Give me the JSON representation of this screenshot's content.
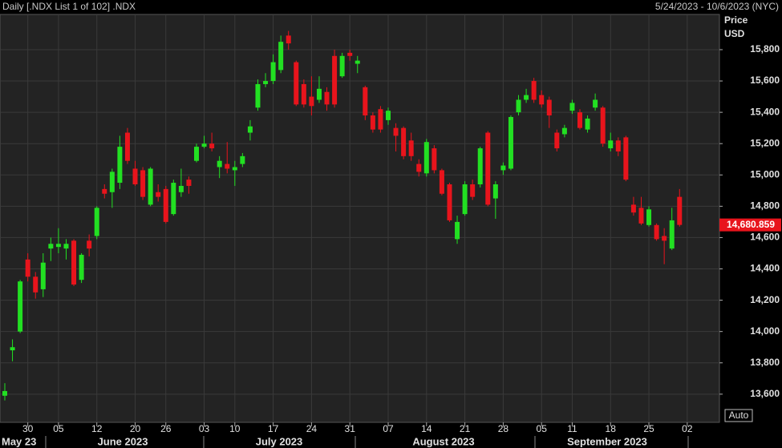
{
  "chart_data": {
    "type": "candlestick",
    "title": "Daily [.NDX List 1 of 102] .NDX",
    "date_range": "5/24/2023 - 10/6/2023 (NYC)",
    "y_label": "Price",
    "y_unit": "USD",
    "auto_button": "Auto",
    "up_color": "#22e022",
    "down_color": "#e8141c",
    "grid": true,
    "ylim": [
      13420,
      16025
    ],
    "yticks": [
      {
        "value": 13600,
        "label": "13,600"
      },
      {
        "value": 13800,
        "label": "13,800"
      },
      {
        "value": 14000,
        "label": "14,000"
      },
      {
        "value": 14200,
        "label": "14,200"
      },
      {
        "value": 14400,
        "label": "14,400"
      },
      {
        "value": 14600,
        "label": "14,600"
      },
      {
        "value": 14800,
        "label": "14,800"
      },
      {
        "value": 15000,
        "label": "15,000"
      },
      {
        "value": 15200,
        "label": "15,200"
      },
      {
        "value": 15400,
        "label": "15,400"
      },
      {
        "value": 15600,
        "label": "15,600"
      },
      {
        "value": 15800,
        "label": "15,800"
      }
    ],
    "last_price": {
      "value": 14680.859,
      "label": "14,680.859"
    },
    "month_labels": [
      "May 23",
      "June 2023",
      "July 2023",
      "August 2023",
      "September 2023"
    ],
    "categories": [
      null,
      null,
      null,
      "30",
      null,
      null,
      null,
      "05",
      null,
      null,
      null,
      null,
      "12",
      null,
      null,
      null,
      null,
      "20",
      null,
      null,
      null,
      "26",
      null,
      null,
      null,
      null,
      "03",
      null,
      null,
      null,
      "10",
      null,
      null,
      null,
      null,
      "17",
      null,
      null,
      null,
      null,
      "24",
      null,
      null,
      null,
      null,
      "31",
      null,
      null,
      null,
      null,
      "07",
      null,
      null,
      null,
      null,
      "14",
      null,
      null,
      null,
      null,
      "21",
      null,
      null,
      null,
      null,
      "28",
      null,
      null,
      null,
      null,
      "05",
      null,
      null,
      null,
      "11",
      null,
      null,
      null,
      null,
      "18",
      null,
      null,
      null,
      null,
      "25",
      null,
      null,
      null,
      null,
      "02",
      null,
      null,
      null
    ],
    "open": [
      13590,
      13880,
      14000,
      14460,
      14350,
      14270,
      14530,
      14540,
      14530,
      14580,
      14330,
      14580,
      14610,
      14910,
      14890,
      14950,
      15270,
      15040,
      15030,
      14810,
      14890,
      14910,
      14750,
      14890,
      14970,
      15090,
      15180,
      15200,
      15050,
      15070,
      15030,
      15070,
      15270,
      15430,
      15580,
      15600,
      15670,
      15890,
      15720,
      15580,
      15500,
      15480,
      15530,
      15760,
      15630,
      15780,
      15710,
      15560,
      15380,
      15420,
      15350,
      15300,
      15300,
      15220,
      15070,
      15010,
      15170,
      15030,
      14940,
      14590,
      14750,
      14940,
      14940,
      15270,
      14850,
      15030,
      15040,
      15400,
      15480,
      15600,
      15510,
      15480,
      15270,
      15260,
      15410,
      15400,
      15290,
      15430,
      15430,
      15170,
      15220,
      15240,
      14810,
      14790,
      14680,
      14680,
      14610,
      14530,
      14860,
      null,
      null,
      null,
      null
    ],
    "high": [
      13670,
      13950,
      14330,
      14500,
      14380,
      14500,
      14600,
      14660,
      14590,
      14590,
      14500,
      14620,
      14800,
      14940,
      15040,
      15250,
      15300,
      15090,
      15050,
      15050,
      14940,
      14930,
      14970,
      15040,
      14990,
      15200,
      15250,
      15270,
      15120,
      15210,
      15090,
      15140,
      15350,
      15610,
      15650,
      15770,
      15890,
      15920,
      15730,
      15610,
      15630,
      15630,
      15560,
      15800,
      15780,
      15800,
      15760,
      15570,
      15400,
      15440,
      15430,
      15330,
      15310,
      15270,
      15100,
      15230,
      15190,
      15040,
      14950,
      14740,
      14960,
      14970,
      15180,
      15280,
      14960,
      15080,
      15380,
      15510,
      15550,
      15620,
      15540,
      15500,
      15290,
      15320,
      15480,
      15420,
      15380,
      15520,
      15440,
      15270,
      15240,
      15250,
      14860,
      14860,
      14800,
      14690,
      14660,
      14790,
      14910,
      null,
      null,
      null,
      null
    ],
    "low": [
      13560,
      13810,
      13990,
      14320,
      14210,
      14220,
      14450,
      14500,
      14460,
      14290,
      14310,
      14480,
      14590,
      14850,
      14790,
      14910,
      15070,
      14930,
      14840,
      14800,
      14830,
      14690,
      14740,
      14860,
      14880,
      15080,
      15170,
      15150,
      14980,
      15010,
      14930,
      15050,
      15220,
      15410,
      15560,
      15580,
      15650,
      15800,
      15440,
      15430,
      15380,
      15460,
      15410,
      15430,
      15620,
      15730,
      15650,
      15350,
      15270,
      15270,
      15320,
      15150,
      15100,
      15090,
      14990,
      14990,
      15010,
      14870,
      14700,
      14560,
      14740,
      14840,
      14920,
      14800,
      14720,
      15000,
      15030,
      15380,
      15460,
      15460,
      15430,
      15300,
      15150,
      15240,
      15390,
      15290,
      15270,
      15410,
      15180,
      15150,
      15120,
      14960,
      14740,
      14680,
      14670,
      14580,
      14430,
      14520,
      14670,
      null,
      null,
      null,
      null
    ],
    "close": [
      13620,
      13900,
      14320,
      14350,
      14250,
      14440,
      14560,
      14560,
      14560,
      14300,
      14490,
      14530,
      14790,
      14880,
      15020,
      15180,
      15090,
      14940,
      14860,
      15040,
      14860,
      14700,
      14950,
      14930,
      14930,
      15180,
      15200,
      15170,
      15090,
      15040,
      15050,
      15120,
      15310,
      15580,
      15600,
      15720,
      15850,
      15840,
      15450,
      15450,
      15440,
      15550,
      15450,
      15450,
      15760,
      15760,
      15730,
      15380,
      15290,
      15290,
      15410,
      15250,
      15120,
      15120,
      15020,
      15210,
      15030,
      14880,
      14710,
      14700,
      14940,
      14860,
      15170,
      14810,
      14940,
      15060,
      15370,
      15480,
      15510,
      15480,
      15450,
      15380,
      15170,
      15300,
      15460,
      15300,
      15360,
      15480,
      15200,
      15220,
      15150,
      14970,
      14760,
      14690,
      14780,
      14590,
      14580,
      14710,
      14680.859,
      null,
      null,
      null,
      null
    ]
  }
}
